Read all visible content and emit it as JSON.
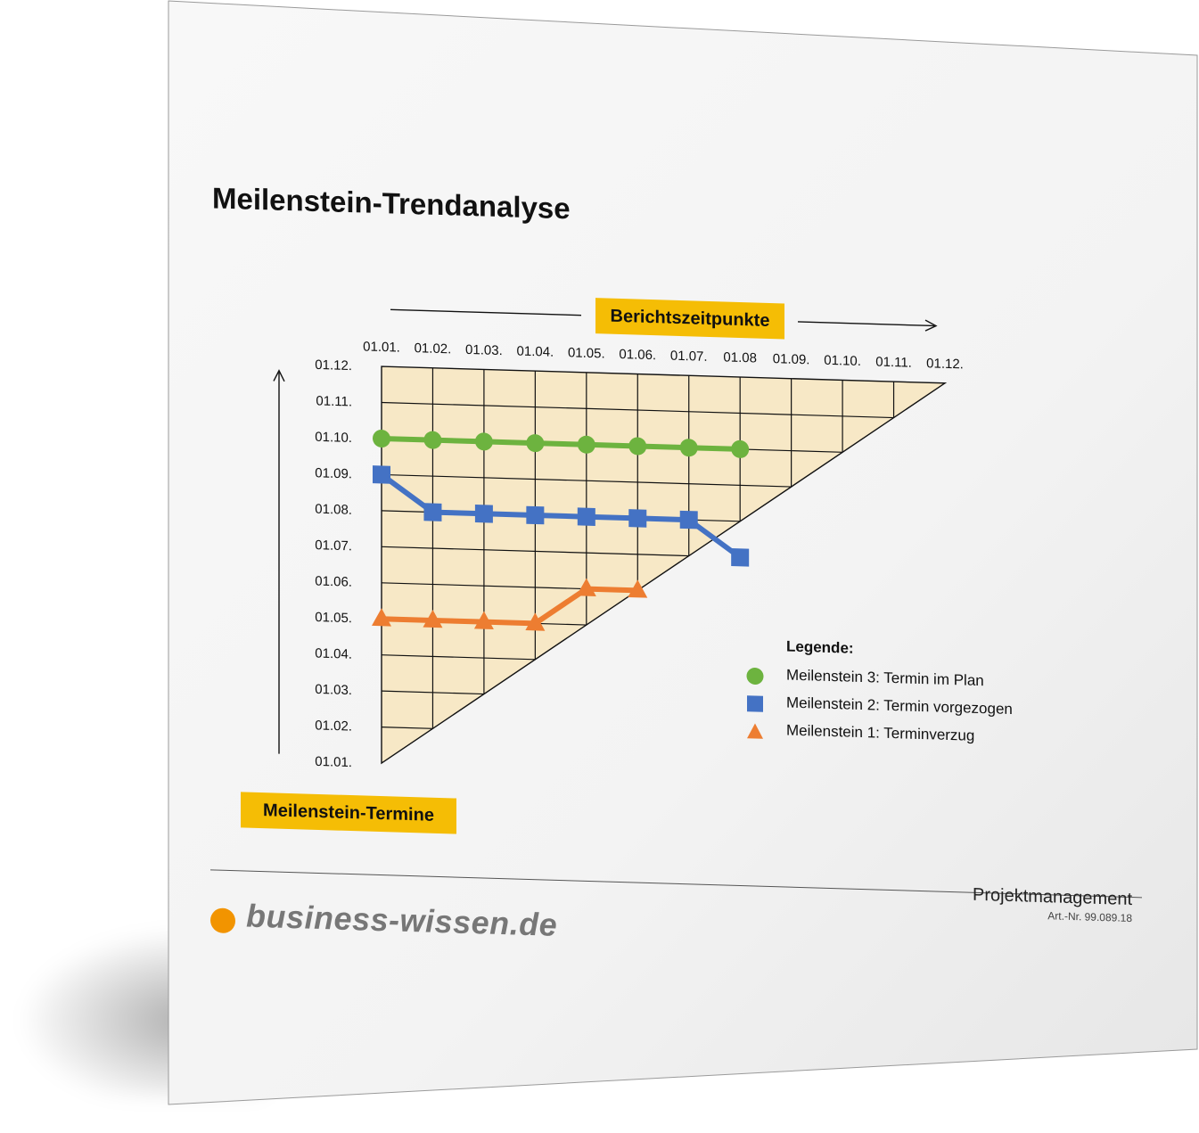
{
  "title": "Meilenstein-Trendanalyse",
  "x_axis_label": "Berichtszeitpunkte",
  "y_axis_label": "Meilenstein-Termine",
  "footer": {
    "brand": "business-wissen.de",
    "category": "Projektmanagement",
    "article_number": "Art.-Nr. 99.089.18"
  },
  "colors": {
    "grid_fill": "#f7e8c6",
    "badge": "#f5bd05",
    "logo_dot": "#f29400"
  },
  "chart_data": {
    "type": "line",
    "x_tick_labels": [
      "01.01.",
      "01.02.",
      "01.03.",
      "01.04.",
      "01.05.",
      "01.06.",
      "01.07.",
      "01.08",
      "01.09.",
      "01.10.",
      "01.11.",
      "01.12."
    ],
    "y_tick_labels": [
      "01.01.",
      "01.02.",
      "01.03.",
      "01.04.",
      "01.05.",
      "01.06.",
      "01.07.",
      "01.08.",
      "01.09.",
      "01.10.",
      "01.11.",
      "01.12."
    ],
    "xlabel": "Berichtszeitpunkte",
    "ylabel": "Meilenstein-Termine",
    "legend_title": "Legende:",
    "legend_position": "bottom-right",
    "grid": true,
    "series": [
      {
        "name": "Meilenstein 3: Termin im Plan",
        "marker": "circle",
        "color": "#6db33f",
        "x": [
          "01.01.",
          "01.02.",
          "01.03.",
          "01.04.",
          "01.05.",
          "01.06.",
          "01.07.",
          "01.08"
        ],
        "y": [
          "01.10.",
          "01.10.",
          "01.10.",
          "01.10.",
          "01.10.",
          "01.10.",
          "01.10.",
          "01.10."
        ]
      },
      {
        "name": "Meilenstein 2: Termin vorgezogen",
        "marker": "square",
        "color": "#4472c4",
        "x": [
          "01.01.",
          "01.02.",
          "01.03.",
          "01.04.",
          "01.05.",
          "01.06.",
          "01.07.",
          "01.08"
        ],
        "y": [
          "01.09.",
          "01.08.",
          "01.08.",
          "01.08.",
          "01.08.",
          "01.08.",
          "01.08.",
          "01.07."
        ]
      },
      {
        "name": "Meilenstein 1: Terminverzug",
        "marker": "triangle",
        "color": "#ed7d31",
        "x": [
          "01.01.",
          "01.02.",
          "01.03.",
          "01.04.",
          "01.05.",
          "01.06."
        ],
        "y": [
          "01.05.",
          "01.05.",
          "01.05.",
          "01.05.",
          "01.06.",
          "01.06."
        ]
      }
    ]
  }
}
